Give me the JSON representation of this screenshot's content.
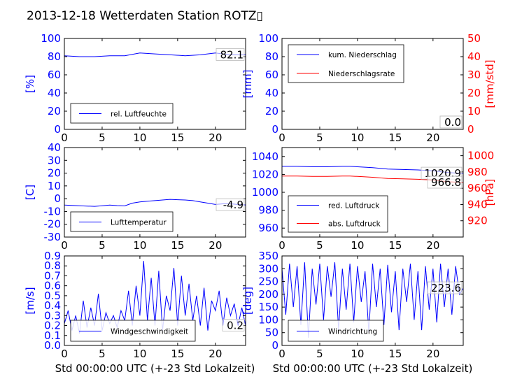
{
  "page": {
    "title": "2013-12-18 Wetterdaten Station ROTZ▯"
  },
  "chart_data": [
    {
      "type": "line",
      "ylabel": "[%]",
      "xlim": [
        0,
        24
      ],
      "ylim": [
        0,
        100
      ],
      "xticks": [
        0,
        5,
        10,
        15,
        20
      ],
      "yticks": [
        0,
        20,
        40,
        60,
        80,
        100
      ],
      "x": [
        0,
        2,
        4,
        6,
        8,
        10,
        12,
        14,
        16,
        18,
        20,
        21,
        22,
        24
      ],
      "series": [
        {
          "name": "rel. Luftfeuchte",
          "color": "#0000ff",
          "values": [
            81,
            80,
            80,
            81,
            81,
            84,
            83,
            82,
            81,
            82,
            84,
            83,
            82,
            82
          ]
        }
      ],
      "last_value": "82.1",
      "legend": "bottom-left"
    },
    {
      "type": "line",
      "ylabel": "[mm]",
      "y2label": "[mm/std]",
      "xlim": [
        0,
        24
      ],
      "ylim": [
        0,
        100
      ],
      "y2lim": [
        0,
        50
      ],
      "xticks": [
        0,
        5,
        10,
        15,
        20
      ],
      "yticks": [
        0,
        20,
        40,
        60,
        80,
        100
      ],
      "y2ticks": [
        0,
        10,
        20,
        30,
        40,
        50
      ],
      "x": [
        0,
        24
      ],
      "series": [
        {
          "name": "kum. Niederschlag",
          "color": "#0000ff",
          "axis": "left",
          "values": [
            0,
            0
          ]
        },
        {
          "name": "Niederschlagsrate",
          "color": "#ff0000",
          "axis": "right",
          "values": [
            0,
            0
          ]
        }
      ],
      "last_values": [
        "0.0",
        "0.0"
      ],
      "legend": "top-left"
    },
    {
      "type": "line",
      "ylabel": "[C]",
      "xlim": [
        0,
        24
      ],
      "ylim": [
        -30,
        40
      ],
      "xticks": [
        0,
        5,
        10,
        15,
        20
      ],
      "yticks": [
        -30,
        -20,
        -10,
        0,
        10,
        20,
        30,
        40
      ],
      "x": [
        0,
        1,
        2,
        3,
        4,
        5,
        6,
        7,
        8,
        9,
        10,
        11,
        12,
        13,
        14,
        15,
        16,
        17,
        18,
        19,
        20,
        21,
        22,
        23,
        24
      ],
      "series": [
        {
          "name": "Lufttemperatur",
          "color": "#0000ff",
          "values": [
            -5,
            -5.2,
            -5.5,
            -5.8,
            -6,
            -5.5,
            -5,
            -5.4,
            -5.6,
            -3.5,
            -2.5,
            -2,
            -1.5,
            -1,
            -0.5,
            -0.8,
            -1,
            -1.5,
            -2.5,
            -3.5,
            -4.5,
            -4,
            -4,
            -4.5,
            -4.9
          ]
        }
      ],
      "last_value": "-4.9",
      "legend": "bottom-left"
    },
    {
      "type": "line",
      "ylabel": "",
      "y2label": "[hPa]",
      "xlim": [
        0,
        24
      ],
      "ylim": [
        950,
        1050
      ],
      "y2lim": [
        900,
        1010
      ],
      "xticks": [
        0,
        5,
        10,
        15,
        20
      ],
      "yticks": [
        960,
        980,
        1000,
        1020,
        1040
      ],
      "y2ticks": [
        920,
        940,
        960,
        980,
        1000
      ],
      "x": [
        0,
        2,
        4,
        6,
        8,
        9,
        10,
        12,
        14,
        16,
        18,
        20,
        22,
        24
      ],
      "series": [
        {
          "name": "red. Luftdruck",
          "color": "#0000ff",
          "axis": "left",
          "values": [
            1029,
            1029,
            1028.5,
            1028.5,
            1029,
            1029,
            1028.5,
            1027.5,
            1026,
            1025.5,
            1025,
            1024,
            1022,
            1021
          ]
        },
        {
          "name": "abs. Luftdruck",
          "color": "#ff0000",
          "axis": "right",
          "values": [
            975,
            975,
            974.5,
            974.5,
            975,
            975,
            974.5,
            973.5,
            972,
            971.5,
            971,
            970,
            968,
            967
          ]
        }
      ],
      "last_values": [
        "1020.9",
        "966.8"
      ],
      "legend": "bottom-left"
    },
    {
      "type": "line",
      "ylabel": "[m/s]",
      "xlabel": "Std 00:00:00 UTC (+-23 Std Lokalzeit)",
      "xlim": [
        0,
        24
      ],
      "ylim": [
        0,
        0.9
      ],
      "xticks": [
        0,
        5,
        10,
        15,
        20
      ],
      "yticks": [
        0.0,
        0.1,
        0.2,
        0.3,
        0.4,
        0.5,
        0.6,
        0.7,
        0.8,
        0.9
      ],
      "x": [
        0,
        0.5,
        1,
        1.5,
        2,
        2.5,
        3,
        3.5,
        4,
        4.5,
        5,
        5.5,
        6,
        6.5,
        7,
        7.5,
        8,
        8.5,
        9,
        9.5,
        10,
        10.5,
        11,
        11.5,
        12,
        12.5,
        13,
        13.5,
        14,
        14.5,
        15,
        15.5,
        16,
        16.5,
        17,
        17.5,
        18,
        18.5,
        19,
        19.5,
        20,
        20.5,
        21,
        21.5,
        22,
        22.5,
        23,
        23.5,
        24
      ],
      "series": [
        {
          "name": "Windgeschwindigkeit",
          "color": "#0000ff",
          "values": [
            0.22,
            0.35,
            0.15,
            0.3,
            0.12,
            0.45,
            0.18,
            0.38,
            0.2,
            0.52,
            0.15,
            0.33,
            0.22,
            0.3,
            0.18,
            0.35,
            0.25,
            0.55,
            0.2,
            0.6,
            0.3,
            0.85,
            0.25,
            0.68,
            0.2,
            0.75,
            0.15,
            0.5,
            0.35,
            0.78,
            0.2,
            0.7,
            0.3,
            0.62,
            0.25,
            0.5,
            0.2,
            0.58,
            0.15,
            0.45,
            0.35,
            0.55,
            0.2,
            0.48,
            0.3,
            0.42,
            0.2,
            0.38,
            0.2
          ]
        }
      ],
      "last_value": "0.2",
      "legend": "bottom-center"
    },
    {
      "type": "line",
      "ylabel": "[deg]",
      "xlabel": "Std 00:00:00 UTC (+-23 Std Lokalzeit)",
      "xlim": [
        0,
        24
      ],
      "ylim": [
        0,
        350
      ],
      "xticks": [
        0,
        5,
        10,
        15,
        20
      ],
      "yticks": [
        0,
        50,
        100,
        150,
        200,
        250,
        300,
        350
      ],
      "x": [
        0,
        0.5,
        1,
        1.5,
        2,
        2.5,
        3,
        3.5,
        4,
        4.5,
        5,
        5.5,
        6,
        6.5,
        7,
        7.5,
        8,
        8.5,
        9,
        9.5,
        10,
        10.5,
        11,
        11.5,
        12,
        12.5,
        13,
        13.5,
        14,
        14.5,
        15,
        15.5,
        16,
        16.5,
        17,
        17.5,
        18,
        18.5,
        19,
        19.5,
        20,
        20.5,
        21,
        21.5,
        22,
        22.5,
        23,
        23.5,
        24
      ],
      "series": [
        {
          "name": "Windrichtung",
          "color": "#0000ff",
          "values": [
            300,
            120,
            320,
            150,
            310,
            80,
            325,
            30,
            300,
            160,
            320,
            100,
            310,
            190,
            325,
            60,
            300,
            140,
            320,
            90,
            310,
            170,
            290,
            50,
            320,
            150,
            300,
            80,
            315,
            130,
            290,
            60,
            300,
            170,
            320,
            100,
            290,
            60,
            310,
            140,
            300,
            90,
            320,
            150,
            300,
            120,
            310,
            200,
            224
          ]
        }
      ],
      "last_value": "223.6",
      "legend": "bottom-left"
    }
  ]
}
